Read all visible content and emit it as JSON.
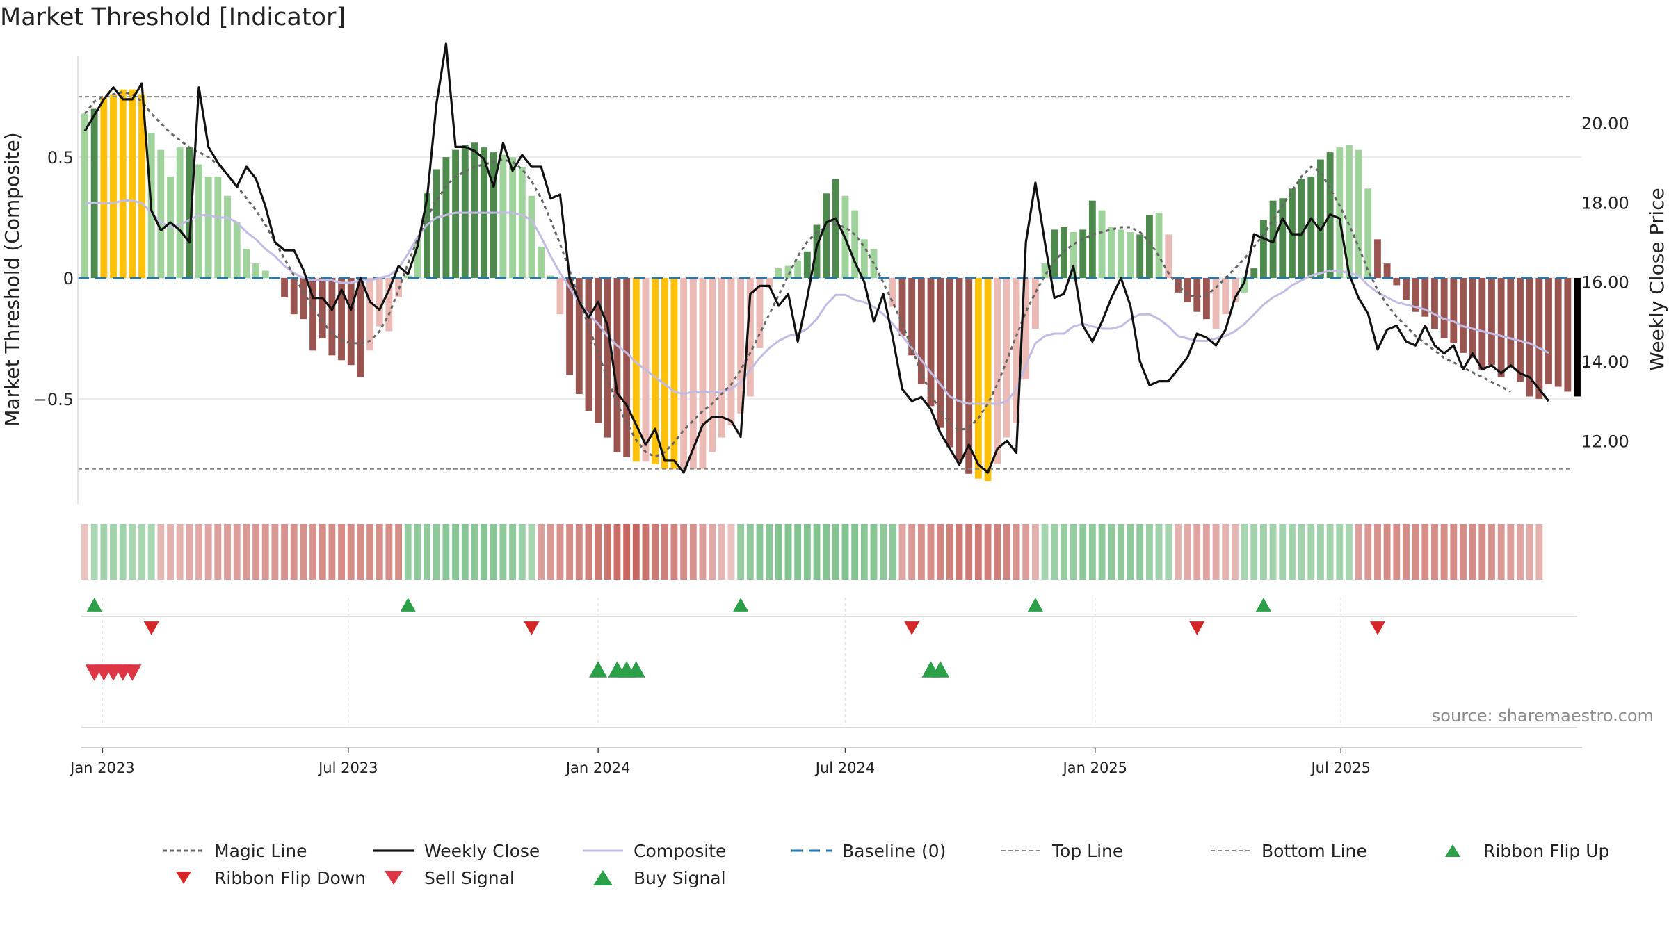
{
  "title": "Market Threshold [Indicator]",
  "source": "source: sharemaestro.com",
  "colors": {
    "bar_strong_green": "#4e8a4e",
    "bar_light_green": "#9fd39b",
    "bar_strong_red": "#9a5550",
    "bar_light_red": "#ebbab5",
    "bar_extreme": "#ffc107",
    "magic_line": "#666666",
    "weekly_close": "#111111",
    "composite": "#c2bce4",
    "baseline": "#1f77b4",
    "threshold_line": "#888888",
    "signal_green": "#2ca048",
    "signal_red": "#d62728",
    "sell_red": "#dc3545"
  },
  "legend": [
    {
      "label": "Magic Line",
      "key": "magic-line"
    },
    {
      "label": "Weekly Close",
      "key": "weekly-close"
    },
    {
      "label": "Composite",
      "key": "composite"
    },
    {
      "label": "Baseline (0)",
      "key": "baseline"
    },
    {
      "label": "Top Line",
      "key": "top-line"
    },
    {
      "label": "Bottom Line",
      "key": "bottom-line"
    },
    {
      "label": "Ribbon Flip Up",
      "key": "ribbon-flip-up"
    },
    {
      "label": "Ribbon Flip Down",
      "key": "ribbon-flip-down"
    },
    {
      "label": "Sell Signal",
      "key": "sell-signal"
    },
    {
      "label": "Buy Signal",
      "key": "buy-signal"
    }
  ],
  "chart_data": {
    "type": "bar",
    "ylabel_left": "Market Threshold (Composite)",
    "ylabel_right": "Weekly Close Price",
    "ylim_left": [
      -0.92,
      0.92
    ],
    "ylim_right": [
      10.5,
      21.7
    ],
    "yticks_left": [
      {
        "v": 0.5,
        "label": "0.5"
      },
      {
        "v": 0,
        "label": "0"
      },
      {
        "v": -0.5,
        "label": "−0.5"
      }
    ],
    "yticks_right": [
      {
        "v": 20,
        "label": "20.00"
      },
      {
        "v": 18,
        "label": "18.00"
      },
      {
        "v": 16,
        "label": "16.00"
      },
      {
        "v": 14,
        "label": "14.00"
      },
      {
        "v": 12,
        "label": "12.00"
      }
    ],
    "x_start": "2022-12-19",
    "x_unit": "weeks",
    "xticks": [
      {
        "label": "Jan 2023",
        "date": "2023-01-01"
      },
      {
        "label": "Jul 2023",
        "date": "2023-07-01"
      },
      {
        "label": "Jan 2024",
        "date": "2024-01-01"
      },
      {
        "label": "Jul 2024",
        "date": "2024-07-01"
      },
      {
        "label": "Jan 2025",
        "date": "2025-01-01"
      },
      {
        "label": "Jul 2025",
        "date": "2025-07-01"
      }
    ],
    "top_line": 0.75,
    "bottom_line": -0.79,
    "grid": true,
    "legend_position": "bottom",
    "bar_values": [
      0.68,
      0.7,
      0.75,
      0.76,
      0.78,
      0.78,
      0.76,
      0.6,
      0.53,
      0.42,
      0.54,
      0.54,
      0.47,
      0.42,
      0.42,
      0.34,
      0.23,
      0.12,
      0.06,
      0.03,
      0,
      -0.08,
      -0.15,
      -0.17,
      -0.3,
      -0.25,
      -0.32,
      -0.34,
      -0.36,
      -0.41,
      -0.3,
      -0.2,
      -0.22,
      -0.08,
      0.01,
      0.16,
      0.35,
      0.45,
      0.5,
      0.53,
      0.55,
      0.56,
      0.54,
      0.52,
      0.51,
      0.5,
      0.46,
      0.34,
      0.13,
      0.01,
      -0.15,
      -0.4,
      -0.48,
      -0.55,
      -0.6,
      -0.66,
      -0.72,
      -0.74,
      -0.76,
      -0.76,
      -0.77,
      -0.79,
      -0.79,
      -0.79,
      -0.79,
      -0.79,
      -0.72,
      -0.66,
      -0.61,
      -0.56,
      -0.49,
      -0.29,
      -0.04,
      0.04,
      0.05,
      0.07,
      0.11,
      0.22,
      0.35,
      0.41,
      0.34,
      0.28,
      0.16,
      0.12,
      0,
      -0.12,
      -0.24,
      -0.32,
      -0.44,
      -0.53,
      -0.62,
      -0.7,
      -0.76,
      -0.81,
      -0.83,
      -0.84,
      -0.77,
      -0.66,
      -0.6,
      -0.42,
      -0.21,
      0.06,
      0.2,
      0.21,
      0.19,
      0.2,
      0.32,
      0.28,
      0.21,
      0.2,
      0.19,
      0.18,
      0.26,
      0.27,
      0.18,
      -0.06,
      -0.1,
      -0.14,
      -0.17,
      -0.21,
      -0.15,
      -0.1,
      -0.06,
      0.04,
      0.24,
      0.32,
      0.33,
      0.37,
      0.41,
      0.42,
      0.49,
      0.52,
      0.54,
      0.55,
      0.53,
      0.37,
      0.16,
      0.06,
      -0.03,
      -0.09,
      -0.14,
      -0.16,
      -0.21,
      -0.25,
      -0.27,
      -0.31,
      -0.33,
      -0.38,
      -0.36,
      -0.41,
      -0.37,
      -0.43,
      -0.49,
      -0.5,
      -0.44,
      -0.45,
      -0.47,
      -0.49
    ],
    "bar_class": [
      1,
      0,
      2,
      2,
      2,
      2,
      2,
      1,
      1,
      1,
      1,
      0,
      1,
      1,
      1,
      1,
      1,
      1,
      1,
      1,
      1,
      3,
      3,
      3,
      3,
      3,
      3,
      3,
      3,
      3,
      4,
      4,
      4,
      4,
      1,
      1,
      0,
      0,
      0,
      0,
      0,
      0,
      0,
      0,
      1,
      1,
      1,
      1,
      1,
      1,
      4,
      3,
      3,
      3,
      3,
      3,
      3,
      3,
      2,
      4,
      2,
      2,
      2,
      4,
      4,
      4,
      4,
      4,
      4,
      4,
      4,
      4,
      4,
      1,
      1,
      1,
      0,
      0,
      0,
      0,
      1,
      1,
      1,
      1,
      1,
      4,
      3,
      3,
      3,
      3,
      3,
      3,
      3,
      3,
      2,
      2,
      4,
      4,
      4,
      4,
      4,
      1,
      0,
      0,
      1,
      0,
      0,
      1,
      1,
      1,
      1,
      0,
      0,
      1,
      4,
      3,
      3,
      3,
      3,
      4,
      4,
      4,
      1,
      0,
      0,
      0,
      0,
      0,
      0,
      0,
      0,
      0,
      1,
      1,
      1,
      1,
      3,
      3,
      3,
      3,
      3,
      3,
      3,
      3,
      3,
      3,
      3,
      3,
      3,
      3,
      3,
      3,
      3,
      3,
      3,
      3,
      3
    ],
    "series": [
      {
        "name": "Weekly Close",
        "axis": "right",
        "values": [
          19.8,
          20.2,
          20.6,
          20.9,
          20.6,
          20.6,
          21.0,
          17.8,
          17.3,
          17.5,
          17.3,
          17.0,
          20.9,
          19.4,
          19.0,
          18.7,
          18.4,
          18.9,
          18.6,
          17.9,
          17.0,
          16.8,
          16.8,
          16.3,
          15.6,
          15.6,
          15.3,
          15.8,
          15.3,
          16.1,
          15.5,
          15.3,
          15.8,
          16.4,
          16.2,
          16.9,
          18.1,
          20.5,
          22.0,
          19.4,
          19.4,
          19.3,
          19.1,
          18.4,
          19.5,
          18.8,
          19.2,
          18.9,
          18.9,
          18.1,
          18.2,
          16.1,
          15.5,
          15.1,
          15.5,
          14.9,
          13.2,
          12.9,
          12.4,
          11.9,
          12.3,
          11.5,
          11.5,
          11.2,
          11.8,
          12.4,
          12.6,
          12.6,
          12.5,
          12.1,
          15.7,
          15.9,
          15.9,
          15.4,
          15.7,
          14.5,
          15.6,
          16.9,
          17.5,
          17.6,
          17.1,
          16.5,
          16.0,
          15.0,
          15.7,
          14.6,
          13.3,
          13.0,
          13.1,
          12.8,
          12.2,
          11.8,
          11.4,
          11.9,
          11.4,
          11.2,
          11.8,
          12.0,
          11.7,
          17.0,
          18.5,
          17.0,
          15.6,
          15.7,
          16.4,
          14.9,
          14.5,
          15.0,
          15.6,
          16.1,
          15.4,
          14.0,
          13.4,
          13.5,
          13.5,
          13.8,
          14.1,
          14.7,
          14.6,
          14.4,
          14.8,
          15.6,
          16.0,
          17.2,
          17.1,
          17.0,
          17.6,
          17.2,
          17.2,
          17.6,
          17.3,
          17.7,
          17.6,
          16.2,
          15.6,
          15.2,
          14.3,
          14.8,
          14.9,
          14.5,
          14.4,
          14.9,
          14.4,
          14.2,
          14.4,
          13.8,
          14.2,
          13.8,
          13.9,
          13.7,
          13.9,
          13.7,
          13.6,
          13.3,
          13.0
        ],
        "note": "weekly close prices, right axis"
      },
      {
        "name": "Composite",
        "axis": "left",
        "values": [
          0.31,
          0.31,
          0.31,
          0.31,
          0.32,
          0.32,
          0.31,
          0.27,
          0.23,
          0.21,
          0.22,
          0.24,
          0.26,
          0.26,
          0.25,
          0.25,
          0.23,
          0.19,
          0.16,
          0.12,
          0.09,
          0.05,
          0.02,
          0.0,
          -0.01,
          -0.01,
          -0.01,
          -0.02,
          -0.02,
          -0.01,
          -0.01,
          0.0,
          0.01,
          0.04,
          0.1,
          0.17,
          0.22,
          0.25,
          0.26,
          0.27,
          0.27,
          0.27,
          0.27,
          0.27,
          0.27,
          0.27,
          0.26,
          0.24,
          0.17,
          0.09,
          0.02,
          -0.04,
          -0.1,
          -0.15,
          -0.19,
          -0.24,
          -0.28,
          -0.31,
          -0.35,
          -0.38,
          -0.41,
          -0.44,
          -0.47,
          -0.48,
          -0.47,
          -0.47,
          -0.47,
          -0.47,
          -0.46,
          -0.43,
          -0.38,
          -0.33,
          -0.29,
          -0.26,
          -0.24,
          -0.23,
          -0.21,
          -0.17,
          -0.11,
          -0.07,
          -0.07,
          -0.09,
          -0.1,
          -0.12,
          -0.15,
          -0.19,
          -0.24,
          -0.29,
          -0.34,
          -0.39,
          -0.44,
          -0.49,
          -0.51,
          -0.52,
          -0.52,
          -0.52,
          -0.52,
          -0.51,
          -0.46,
          -0.36,
          -0.27,
          -0.24,
          -0.23,
          -0.23,
          -0.2,
          -0.19,
          -0.2,
          -0.21,
          -0.21,
          -0.2,
          -0.17,
          -0.15,
          -0.15,
          -0.17,
          -0.2,
          -0.24,
          -0.25,
          -0.26,
          -0.26,
          -0.25,
          -0.24,
          -0.22,
          -0.19,
          -0.15,
          -0.11,
          -0.08,
          -0.06,
          -0.03,
          -0.01,
          0.01,
          0.02,
          0.03,
          0.03,
          0.02,
          0.01,
          -0.03,
          -0.06,
          -0.08,
          -0.1,
          -0.11,
          -0.12,
          -0.13,
          -0.15,
          -0.17,
          -0.18,
          -0.2,
          -0.21,
          -0.22,
          -0.23,
          -0.24,
          -0.25,
          -0.26,
          -0.27,
          -0.29,
          -0.31
        ]
      },
      {
        "name": "Magic Line",
        "axis": "left",
        "values": [
          0.68,
          0.73,
          0.75,
          0.76,
          0.77,
          0.76,
          0.73,
          0.68,
          0.64,
          0.6,
          0.57,
          0.54,
          0.52,
          0.5,
          0.47,
          0.43,
          0.38,
          0.33,
          0.28,
          0.22,
          0.15,
          0.08,
          0.01,
          -0.06,
          -0.12,
          -0.18,
          -0.23,
          -0.26,
          -0.27,
          -0.27,
          -0.26,
          -0.22,
          -0.15,
          -0.05,
          0.06,
          0.16,
          0.25,
          0.32,
          0.38,
          0.42,
          0.44,
          0.46,
          0.47,
          0.48,
          0.49,
          0.48,
          0.45,
          0.4,
          0.33,
          0.24,
          0.14,
          0.03,
          -0.09,
          -0.2,
          -0.31,
          -0.42,
          -0.52,
          -0.6,
          -0.67,
          -0.72,
          -0.74,
          -0.72,
          -0.68,
          -0.63,
          -0.59,
          -0.55,
          -0.52,
          -0.48,
          -0.44,
          -0.38,
          -0.31,
          -0.23,
          -0.15,
          -0.07,
          0.01,
          0.09,
          0.15,
          0.19,
          0.21,
          0.22,
          0.21,
          0.18,
          0.13,
          0.06,
          -0.02,
          -0.1,
          -0.19,
          -0.29,
          -0.39,
          -0.48,
          -0.55,
          -0.6,
          -0.63,
          -0.62,
          -0.58,
          -0.52,
          -0.44,
          -0.34,
          -0.24,
          -0.14,
          -0.06,
          0.01,
          0.07,
          0.11,
          0.14,
          0.16,
          0.18,
          0.19,
          0.2,
          0.21,
          0.21,
          0.19,
          0.15,
          0.09,
          0.02,
          -0.03,
          -0.07,
          -0.08,
          -0.07,
          -0.04,
          0.0,
          0.04,
          0.08,
          0.13,
          0.18,
          0.24,
          0.3,
          0.36,
          0.42,
          0.46,
          0.44,
          0.37,
          0.3,
          0.22,
          0.13,
          0.03,
          -0.05,
          -0.11,
          -0.16,
          -0.2,
          -0.24,
          -0.27,
          -0.3,
          -0.33,
          -0.35,
          -0.37,
          -0.39,
          -0.41,
          -0.43,
          -0.45,
          -0.47
        ]
      }
    ],
    "ribbon": {
      "note": "regime ribbon: one cell per week, value -1..1 (green positive, red negative)",
      "values": [
        -0.15,
        0.35,
        0.45,
        0.45,
        0.45,
        0.4,
        0.4,
        0.38,
        -0.25,
        -0.3,
        -0.3,
        -0.35,
        -0.35,
        -0.4,
        -0.45,
        -0.45,
        -0.45,
        -0.5,
        -0.5,
        -0.5,
        -0.5,
        -0.55,
        -0.55,
        -0.55,
        -0.55,
        -0.6,
        -0.6,
        -0.6,
        -0.6,
        -0.6,
        -0.6,
        -0.6,
        -0.6,
        -0.6,
        0.55,
        0.6,
        0.6,
        0.6,
        0.65,
        0.65,
        0.65,
        0.65,
        0.65,
        0.65,
        0.6,
        0.6,
        0.5,
        0.4,
        -0.45,
        -0.5,
        -0.55,
        -0.6,
        -0.65,
        -0.7,
        -0.75,
        -0.8,
        -0.85,
        -0.9,
        -0.9,
        -0.8,
        -0.75,
        -0.7,
        -0.65,
        -0.6,
        -0.55,
        -0.45,
        -0.35,
        -0.25,
        -0.15,
        0.55,
        0.6,
        0.65,
        0.65,
        0.7,
        0.7,
        0.7,
        0.7,
        0.7,
        0.7,
        0.7,
        0.7,
        0.7,
        0.65,
        0.65,
        0.6,
        0.6,
        -0.4,
        -0.5,
        -0.55,
        -0.6,
        -0.65,
        -0.7,
        -0.75,
        -0.75,
        -0.75,
        -0.7,
        -0.7,
        -0.65,
        -0.55,
        -0.45,
        -0.3,
        0.4,
        0.5,
        0.55,
        0.55,
        0.6,
        0.6,
        0.6,
        0.6,
        0.6,
        0.6,
        0.6,
        0.5,
        0.45,
        0.4,
        -0.3,
        -0.35,
        -0.4,
        -0.4,
        -0.35,
        -0.3,
        -0.25,
        0.4,
        0.45,
        0.45,
        0.45,
        0.45,
        0.45,
        0.45,
        0.45,
        0.45,
        0.45,
        0.45,
        0.4,
        -0.45,
        -0.5,
        -0.55,
        -0.6,
        -0.6,
        -0.6,
        -0.6,
        -0.6,
        -0.6,
        -0.6,
        -0.6,
        -0.6,
        -0.6,
        -0.6,
        -0.55,
        -0.5,
        -0.45,
        -0.4,
        -0.35,
        -0.3
      ]
    },
    "ribbon_flip_up_weeks": [
      1,
      34,
      69,
      100,
      124
    ],
    "ribbon_flip_down_weeks": [
      7,
      47,
      87,
      117,
      136
    ],
    "sell_signal_weeks": [
      1,
      2,
      3,
      4,
      5
    ],
    "buy_signal_weeks": [
      54,
      56,
      57,
      58,
      89,
      90
    ]
  }
}
